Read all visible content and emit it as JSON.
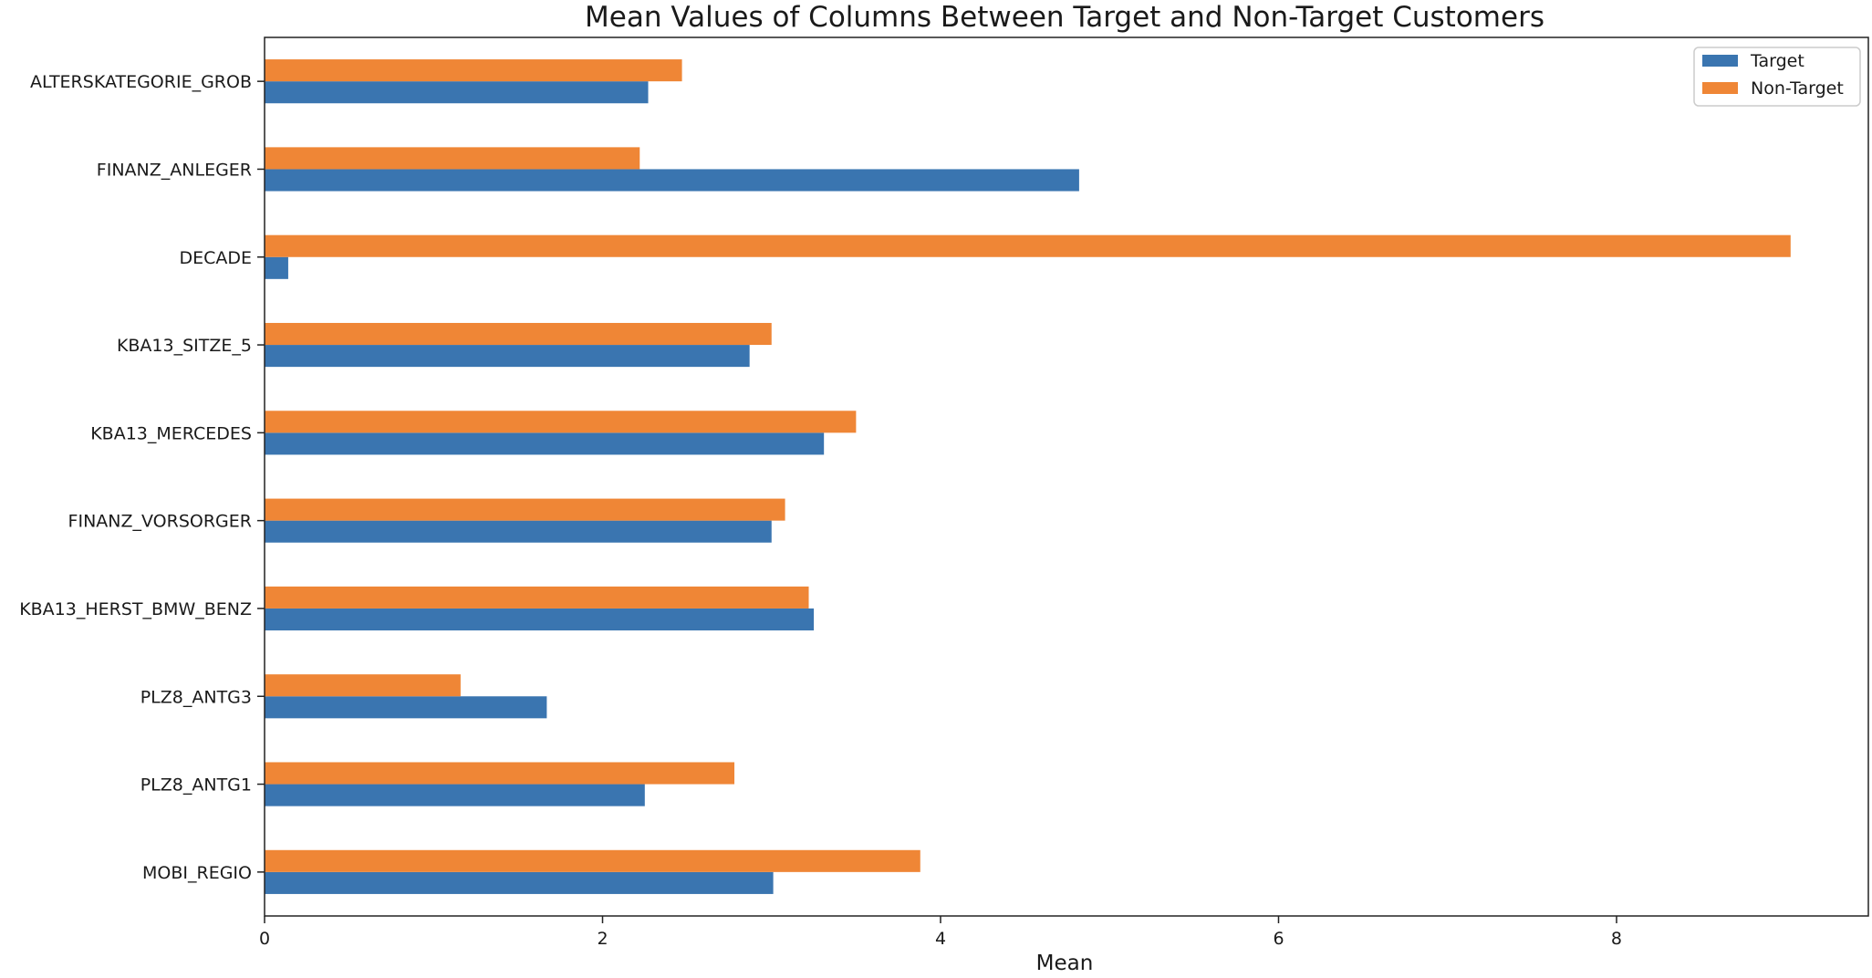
{
  "chart_data": {
    "type": "bar",
    "orientation": "horizontal",
    "title": "Mean Values of Columns Between Target and Non-Target Customers",
    "xlabel": "Mean",
    "ylabel": "",
    "categories": [
      "ALTERSKATEGORIE_GROB",
      "FINANZ_ANLEGER",
      "DECADE",
      "KBA13_SITZE_5",
      "KBA13_MERCEDES",
      "FINANZ_VORSORGER",
      "KBA13_HERST_BMW_BENZ",
      "PLZ8_ANTG3",
      "PLZ8_ANTG1",
      "MOBI_REGIO"
    ],
    "series": [
      {
        "name": "Target",
        "color": "#3a75b0",
        "values": [
          2.27,
          4.82,
          0.14,
          2.87,
          3.31,
          3.0,
          3.25,
          1.67,
          2.25,
          3.01
        ]
      },
      {
        "name": "Non-Target",
        "color": "#ef8636",
        "values": [
          2.47,
          2.22,
          9.03,
          3.0,
          3.5,
          3.08,
          3.22,
          1.16,
          2.78,
          3.88
        ]
      }
    ],
    "xlim": [
      0,
      9.49
    ],
    "xticks": [
      0,
      2,
      4,
      6,
      8
    ],
    "xtick_labels": [
      "0",
      "2",
      "4",
      "6",
      "8"
    ],
    "grid": false,
    "legend_position": "top-right"
  }
}
